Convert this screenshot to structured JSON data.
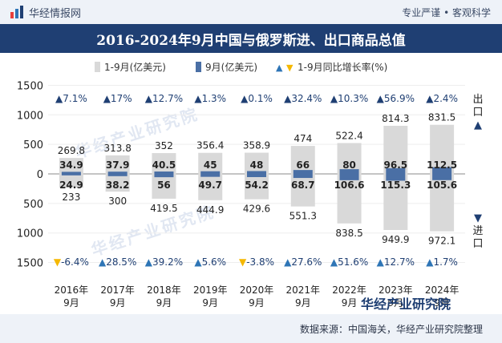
{
  "header": {
    "brand": "华经情报网",
    "slogan": "专业严谨 • 客观科学",
    "title": "2016-2024年9月中国与俄罗斯进、出口商品总值"
  },
  "legend": {
    "item1": "1-9月(亿美元)",
    "item2": "9月(亿美元)",
    "item3": "1-9月同比增长率(%)"
  },
  "side_labels": {
    "export": "出口▲",
    "import": "▼进口"
  },
  "watermark": {
    "text1": "华经产业研究院",
    "text2": "华经产业研究院"
  },
  "footer": {
    "source": "数据来源：中国海关，华经产业研究院整理"
  },
  "colors": {
    "cumulative_bar": "#d9d9d9",
    "month_bar": "#4a6fa5",
    "up_triangle": "#2e75b6",
    "down_triangle": "#f5b800",
    "header_band": "#1f3f73"
  },
  "chart_data": {
    "type": "bar",
    "categories": [
      "2016年\n9月",
      "2017年\n9月",
      "2018年\n9月",
      "2019年\n9月",
      "2020年\n9月",
      "2021年\n9月",
      "2022年\n9月",
      "2023年\n9月",
      "2024年\n9月"
    ],
    "yticks": [
      "1500",
      "1000",
      "500",
      "0",
      "500",
      "1000",
      "1500"
    ],
    "ylim": [
      -1500,
      1500
    ],
    "series": [
      {
        "name": "1-9月(亿美元)",
        "direction": "export",
        "values": [
          269.8,
          313.8,
          352,
          356.4,
          358.9,
          474,
          522.4,
          814.3,
          831.5
        ]
      },
      {
        "name": "9月(亿美元)",
        "direction": "export",
        "values": [
          34.9,
          37.9,
          40.5,
          45,
          48,
          66,
          80,
          96.5,
          112.5
        ]
      },
      {
        "name": "1-9月(亿美元)",
        "direction": "import",
        "values": [
          233,
          300,
          419.5,
          444.9,
          429.6,
          551.3,
          838.5,
          949.9,
          972.1
        ]
      },
      {
        "name": "9月(亿美元)",
        "direction": "import",
        "values": [
          24.9,
          38.2,
          56,
          49.7,
          54.2,
          68.7,
          106.6,
          115.3,
          105.6
        ]
      }
    ],
    "export_growth": [
      "7.1%",
      "17%",
      "12.7%",
      "1.3%",
      "0.1%",
      "32.4%",
      "10.3%",
      "56.9%",
      "2.4%"
    ],
    "export_growth_dir": [
      "up",
      "up",
      "up",
      "up",
      "up",
      "up",
      "up",
      "up",
      "up"
    ],
    "import_growth": [
      "-6.4%",
      "28.5%",
      "39.2%",
      "5.6%",
      "-3.8%",
      "27.6%",
      "51.6%",
      "12.7%",
      "1.7%"
    ],
    "import_growth_dir": [
      "down",
      "up",
      "up",
      "up",
      "down",
      "up",
      "up",
      "up",
      "up"
    ]
  }
}
